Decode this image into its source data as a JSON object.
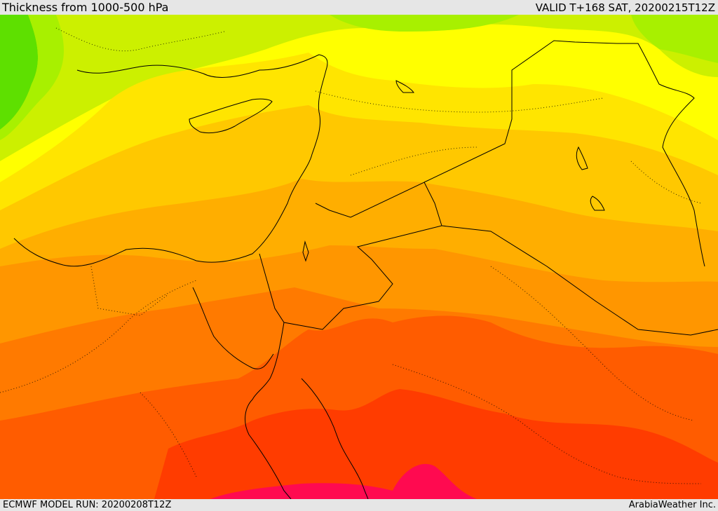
{
  "header": {
    "title": "Thickness from 1000-500 hPa",
    "valid": "VALID T+168 SAT, 20200215T12Z"
  },
  "footer": {
    "model_run": "ECMWF MODEL RUN: 20200208T12Z",
    "credit": "ArabiaWeather Inc."
  },
  "palette": {
    "bands": [
      "#5ee000",
      "#a8f000",
      "#ccf000",
      "#ffff00",
      "#ffe500",
      "#ffc800",
      "#ffae00",
      "#ff9600",
      "#ff7a00",
      "#ff5c00",
      "#ff3c00",
      "#ff0a50"
    ],
    "coastline": "#000000",
    "bar_background": "#e6e6e6"
  }
}
